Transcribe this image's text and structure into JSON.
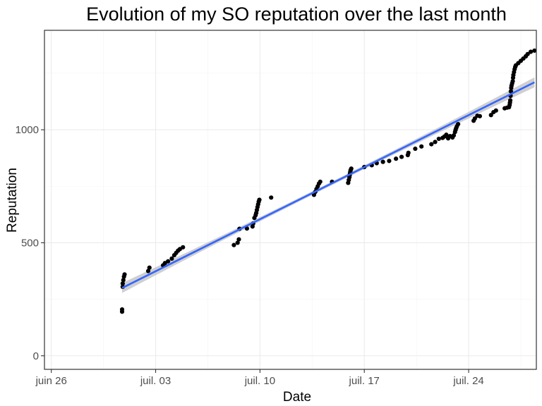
{
  "chart_data": {
    "type": "scatter",
    "title": "Evolution of my SO reputation over the last month",
    "xlabel": "Date",
    "ylabel": "Reputation",
    "x_axis_type": "date",
    "xlim": [
      "2018-06-25T13:00",
      "2018-07-28T13:00"
    ],
    "ylim": [
      -60,
      1440
    ],
    "x_ticks": [
      {
        "date": "2018-06-26",
        "label": "juin 26"
      },
      {
        "date": "2018-07-03",
        "label": "juil. 03"
      },
      {
        "date": "2018-07-10",
        "label": "juil. 10"
      },
      {
        "date": "2018-07-17",
        "label": "juil. 17"
      },
      {
        "date": "2018-07-24",
        "label": "juil. 24"
      }
    ],
    "y_ticks": [
      0,
      500,
      1000
    ],
    "grid": true,
    "colors": {
      "points": "#000000",
      "trend": "#3366ff",
      "band": "#bfbfbf",
      "grid": "#ebebeb",
      "panel_border": "#333333"
    },
    "series": [
      {
        "points": [
          {
            "x": "2018-06-30T18:00",
            "y": 195
          },
          {
            "x": "2018-06-30T18:00",
            "y": 205
          },
          {
            "x": "2018-06-30T19:00",
            "y": 305
          },
          {
            "x": "2018-06-30T19:00",
            "y": 320
          },
          {
            "x": "2018-06-30T20:00",
            "y": 335
          },
          {
            "x": "2018-06-30T21:00",
            "y": 350
          },
          {
            "x": "2018-06-30T22:00",
            "y": 360
          },
          {
            "x": "2018-07-02T12:00",
            "y": 375
          },
          {
            "x": "2018-07-02T14:00",
            "y": 390
          },
          {
            "x": "2018-07-03T12:00",
            "y": 400
          },
          {
            "x": "2018-07-03T15:00",
            "y": 410
          },
          {
            "x": "2018-07-03T20:00",
            "y": 418
          },
          {
            "x": "2018-07-04T02:00",
            "y": 430
          },
          {
            "x": "2018-07-04T06:00",
            "y": 445
          },
          {
            "x": "2018-07-04T09:00",
            "y": 455
          },
          {
            "x": "2018-07-04T12:00",
            "y": 465
          },
          {
            "x": "2018-07-04T15:00",
            "y": 472
          },
          {
            "x": "2018-07-04T20:00",
            "y": 480
          },
          {
            "x": "2018-07-08T06:00",
            "y": 490
          },
          {
            "x": "2018-07-08T12:00",
            "y": 500
          },
          {
            "x": "2018-07-08T14:00",
            "y": 515
          },
          {
            "x": "2018-07-08T15:00",
            "y": 562
          },
          {
            "x": "2018-07-09T03:00",
            "y": 563
          },
          {
            "x": "2018-07-09T12:00",
            "y": 572
          },
          {
            "x": "2018-07-09T13:00",
            "y": 585
          },
          {
            "x": "2018-07-09T15:00",
            "y": 610
          },
          {
            "x": "2018-07-09T17:00",
            "y": 622
          },
          {
            "x": "2018-07-09T18:00",
            "y": 632
          },
          {
            "x": "2018-07-09T19:00",
            "y": 645
          },
          {
            "x": "2018-07-09T20:00",
            "y": 658
          },
          {
            "x": "2018-07-09T21:00",
            "y": 670
          },
          {
            "x": "2018-07-09T22:00",
            "y": 682
          },
          {
            "x": "2018-07-09T23:00",
            "y": 690
          },
          {
            "x": "2018-07-10T18:00",
            "y": 700
          },
          {
            "x": "2018-07-13T15:00",
            "y": 712
          },
          {
            "x": "2018-07-13T17:00",
            "y": 725
          },
          {
            "x": "2018-07-13T19:00",
            "y": 738
          },
          {
            "x": "2018-07-13T21:00",
            "y": 750
          },
          {
            "x": "2018-07-13T23:00",
            "y": 762
          },
          {
            "x": "2018-07-14T01:00",
            "y": 770
          },
          {
            "x": "2018-07-14T20:00",
            "y": 770
          },
          {
            "x": "2018-07-15T22:00",
            "y": 765
          },
          {
            "x": "2018-07-15T23:00",
            "y": 778
          },
          {
            "x": "2018-07-16T00:00",
            "y": 790
          },
          {
            "x": "2018-07-16T00:30",
            "y": 800
          },
          {
            "x": "2018-07-16T01:00",
            "y": 808
          },
          {
            "x": "2018-07-16T01:30",
            "y": 815
          },
          {
            "x": "2018-07-16T02:00",
            "y": 822
          },
          {
            "x": "2018-07-16T03:00",
            "y": 828
          },
          {
            "x": "2018-07-17T00:00",
            "y": 835
          },
          {
            "x": "2018-07-17T12:00",
            "y": 843
          },
          {
            "x": "2018-07-17T20:00",
            "y": 852
          },
          {
            "x": "2018-07-18T06:00",
            "y": 858
          },
          {
            "x": "2018-07-18T16:00",
            "y": 862
          },
          {
            "x": "2018-07-19T03:00",
            "y": 872
          },
          {
            "x": "2018-07-19T12:00",
            "y": 880
          },
          {
            "x": "2018-07-19T22:00",
            "y": 888
          },
          {
            "x": "2018-07-19T23:00",
            "y": 898
          },
          {
            "x": "2018-07-20T10:00",
            "y": 916
          },
          {
            "x": "2018-07-20T20:00",
            "y": 926
          },
          {
            "x": "2018-07-21T12:00",
            "y": 936
          },
          {
            "x": "2018-07-21T18:00",
            "y": 946
          },
          {
            "x": "2018-07-22T00:00",
            "y": 960
          },
          {
            "x": "2018-07-22T06:00",
            "y": 964
          },
          {
            "x": "2018-07-22T09:00",
            "y": 970
          },
          {
            "x": "2018-07-22T12:00",
            "y": 978
          },
          {
            "x": "2018-07-22T15:00",
            "y": 962
          },
          {
            "x": "2018-07-22T18:00",
            "y": 972
          },
          {
            "x": "2018-07-22T22:00",
            "y": 966
          },
          {
            "x": "2018-07-23T00:00",
            "y": 975
          },
          {
            "x": "2018-07-23T02:00",
            "y": 990
          },
          {
            "x": "2018-07-23T03:00",
            "y": 1000
          },
          {
            "x": "2018-07-23T04:00",
            "y": 1008
          },
          {
            "x": "2018-07-23T05:00",
            "y": 1015
          },
          {
            "x": "2018-07-23T07:00",
            "y": 1025
          },
          {
            "x": "2018-07-24T08:00",
            "y": 1040
          },
          {
            "x": "2018-07-24T10:00",
            "y": 1050
          },
          {
            "x": "2018-07-24T14:00",
            "y": 1062
          },
          {
            "x": "2018-07-24T18:00",
            "y": 1060
          },
          {
            "x": "2018-07-25T12:00",
            "y": 1065
          },
          {
            "x": "2018-07-25T16:00",
            "y": 1078
          },
          {
            "x": "2018-07-25T20:00",
            "y": 1085
          },
          {
            "x": "2018-07-26T10:00",
            "y": 1095
          },
          {
            "x": "2018-07-26T14:00",
            "y": 1098
          },
          {
            "x": "2018-07-26T17:00",
            "y": 1100
          },
          {
            "x": "2018-07-26T18:00",
            "y": 1110
          },
          {
            "x": "2018-07-26T18:30",
            "y": 1120
          },
          {
            "x": "2018-07-26T19:00",
            "y": 1130
          },
          {
            "x": "2018-07-26T19:30",
            "y": 1150
          },
          {
            "x": "2018-07-26T20:00",
            "y": 1170
          },
          {
            "x": "2018-07-26T20:30",
            "y": 1185
          },
          {
            "x": "2018-07-26T21:00",
            "y": 1195
          },
          {
            "x": "2018-07-26T22:00",
            "y": 1205
          },
          {
            "x": "2018-07-26T23:00",
            "y": 1215
          },
          {
            "x": "2018-07-26T23:30",
            "y": 1230
          },
          {
            "x": "2018-07-27T00:00",
            "y": 1242
          },
          {
            "x": "2018-07-27T01:00",
            "y": 1255
          },
          {
            "x": "2018-07-27T02:00",
            "y": 1268
          },
          {
            "x": "2018-07-27T03:00",
            "y": 1278
          },
          {
            "x": "2018-07-27T04:00",
            "y": 1285
          },
          {
            "x": "2018-07-27T08:00",
            "y": 1295
          },
          {
            "x": "2018-07-27T12:00",
            "y": 1305
          },
          {
            "x": "2018-07-27T16:00",
            "y": 1315
          },
          {
            "x": "2018-07-27T20:00",
            "y": 1325
          },
          {
            "x": "2018-07-27T23:00",
            "y": 1335
          },
          {
            "x": "2018-07-28T04:00",
            "y": 1345
          },
          {
            "x": "2018-07-28T10:00",
            "y": 1350
          }
        ]
      }
    ],
    "trend": {
      "method": "linear",
      "start": {
        "x": "2018-06-30T18:00",
        "y": 300
      },
      "end": {
        "x": "2018-07-28T10:00",
        "y": 1210
      },
      "band_halfwidth_ends": 22,
      "band_halfwidth_center": 8
    }
  }
}
